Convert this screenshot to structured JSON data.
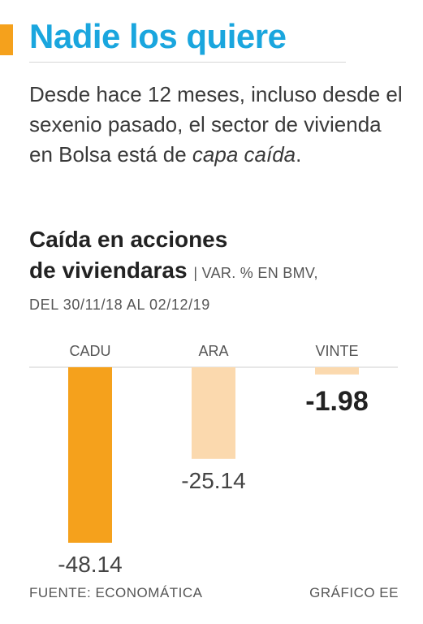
{
  "headline": "Nadie los quiere",
  "intro": {
    "text": "Desde hace 12 meses, incluso desde el sexenio pasado, el sector de vivienda en Bolsa está de ",
    "emphasis": "capa caída",
    "end": "."
  },
  "chart_data": {
    "type": "bar",
    "title": "Caída en acciones de viviendaras",
    "title_line1": "Caída en acciones",
    "title_line2": "de viviendaras",
    "subtitle_part1": "| VAR. % EN BMV,",
    "subtitle_part2": "DEL 30/11/18 AL 02/12/19",
    "categories": [
      "CADU",
      "ARA",
      "VINTE"
    ],
    "values": [
      -48.14,
      -25.14,
      -1.98
    ],
    "value_labels": [
      "-48.14",
      "-25.14",
      "-1.98"
    ],
    "colors": [
      "#f5a11c",
      "#fbd9ae",
      "#fbd9ae"
    ],
    "ylim": [
      -48.14,
      0
    ],
    "grid": false
  },
  "footer": {
    "source": "FUENTE: ECONOMÁTICA",
    "credit": "GRÁFICO EE"
  },
  "colors": {
    "accent": "#f5a11c",
    "headline": "#1aa6de"
  }
}
